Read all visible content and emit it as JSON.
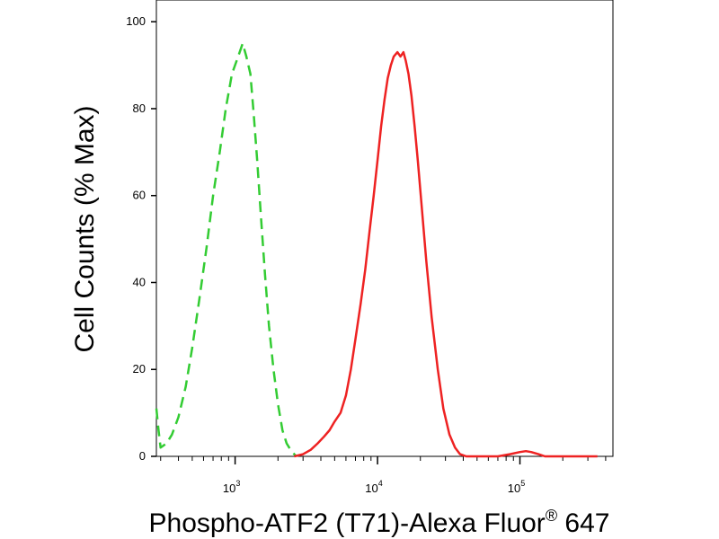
{
  "chart_data": {
    "type": "line",
    "title": "",
    "xlabel": "Phospho-ATF2 (T71)-Alexa Fluor",
    "xlabel_mark": "®",
    "xlabel_suffix": " 647",
    "ylabel": "Cell Counts (% Max)",
    "xscale": "log",
    "xlim": [
      280,
      450000
    ],
    "ylim": [
      0,
      105
    ],
    "grid": false,
    "y_ticks": [
      "0",
      "20",
      "40",
      "60",
      "80",
      "100"
    ],
    "x_ticks": [
      {
        "base": "10",
        "exp": "3",
        "value": 1000
      },
      {
        "base": "10",
        "exp": "4",
        "value": 10000
      },
      {
        "base": "10",
        "exp": "5",
        "value": 100000
      }
    ],
    "series": [
      {
        "color": "#33cc33",
        "style": "dashed",
        "x": [
          280,
          290,
          300,
          330,
          360,
          400,
          450,
          500,
          560,
          630,
          700,
          780,
          860,
          950,
          1050,
          1130,
          1200,
          1280,
          1350,
          1430,
          1520,
          1620,
          1730,
          1860,
          2000,
          2150,
          2300,
          2450,
          2600,
          2700
        ],
        "y": [
          11,
          6,
          2,
          3,
          5,
          9,
          16,
          25,
          36,
          48,
          60,
          70,
          80,
          88,
          92,
          95,
          92,
          88,
          79,
          68,
          55,
          42,
          30,
          20,
          12,
          6,
          3,
          1.5,
          0.5,
          0
        ]
      },
      {
        "color": "#ee2222",
        "style": "solid",
        "x": [
          2600,
          3000,
          3400,
          3800,
          4200,
          4600,
          5000,
          5500,
          6000,
          6500,
          7000,
          7600,
          8200,
          8800,
          9400,
          10000,
          10600,
          11200,
          11800,
          12400,
          13000,
          13800,
          14500,
          15200,
          15800,
          16500,
          17300,
          18200,
          19200,
          20500,
          22000,
          24000,
          26500,
          29000,
          32000,
          35000,
          38000,
          42000,
          47000,
          55000,
          70000,
          85000,
          100000,
          110000,
          120000,
          135000,
          150000,
          180000,
          250000,
          350000
        ],
        "y": [
          0,
          0.5,
          1.5,
          3,
          4.5,
          6,
          8,
          10,
          14,
          20,
          27,
          35,
          43,
          52,
          60,
          68,
          76,
          82,
          87,
          90,
          92,
          93,
          92,
          93,
          91,
          88,
          83,
          76,
          68,
          57,
          45,
          32,
          20,
          11,
          5,
          2,
          0.5,
          0,
          0,
          0,
          0,
          0.5,
          1,
          1.2,
          1,
          0.5,
          0,
          0,
          0,
          0
        ]
      }
    ]
  }
}
